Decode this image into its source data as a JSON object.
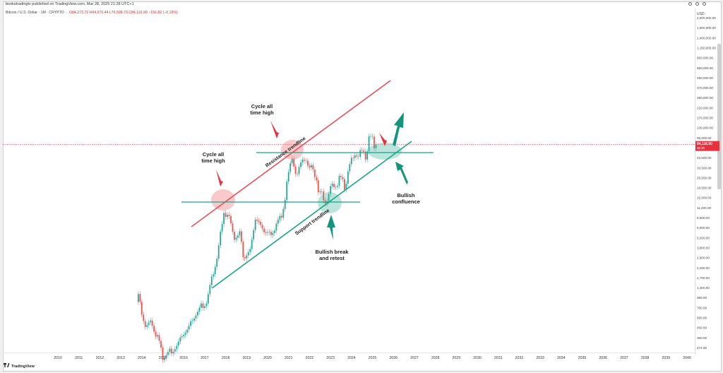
{
  "header": {
    "published": "bookstradingtv published on TradingView.com, Mar 28, 2025 21:28 UTC+1",
    "symbol": "Bitcoin / U.S. Dollar · 1M · CRYPTO",
    "open": "O84,273.72",
    "high": "H94,970.44",
    "low": "L76,598.73",
    "close": "C84,116.90",
    "change": "−156.82 (−0.19%)"
  },
  "axis": {
    "currency": "USD",
    "price_label": "84,116.90",
    "price_label_sub": "3d 4h",
    "brand": "TradingView"
  },
  "colors": {
    "resistance": "#e8505b",
    "support": "#1aa58a",
    "bull_candle": "#26a69a",
    "bear_candle": "#ef5350",
    "arrow_red": "#e8313f",
    "arrow_green": "#12957c",
    "price_label_bg": "#e8313f"
  },
  "annotations": {
    "cycle_high_1": [
      "Cycle all",
      "time high"
    ],
    "cycle_high_2": [
      "Cycle all",
      "time high"
    ],
    "resistance": "Resistance trendline",
    "support": "Support trendline",
    "bullish_break": [
      "Bullish break",
      "and retest"
    ],
    "bullish_confluence": [
      "Bullish",
      "confluence"
    ]
  },
  "chart_data": {
    "type": "candlestick",
    "title": "",
    "scale": "log",
    "x_ticks": [
      "2010",
      "2011",
      "2012",
      "2013",
      "2014",
      "2015",
      "2016",
      "2017",
      "2018",
      "2019",
      "2020",
      "2021",
      "2022",
      "2023",
      "2024",
      "2025",
      "2026",
      "2027",
      "2028",
      "2029",
      "2030",
      "2031",
      "2032",
      "2033",
      "2034",
      "2035",
      "2036",
      "2037",
      "2038",
      "2039",
      "2040"
    ],
    "y_ticks": [
      "2,500,000.00",
      "1,900,000.00",
      "1,400,000.00",
      "1,150,000.00",
      "850,000.00",
      "650,000.00",
      "490,000.00",
      "370,000.00",
      "280,000.00",
      "220,000.00",
      "170,000.00",
      "130,000.00",
      "98,000.00",
      "57,500.00",
      "43,500.00",
      "33,500.00",
      "25,500.00",
      "19,500.00",
      "15,000.00",
      "11,400.00",
      "8,600.00",
      "6,600.00",
      "5,000.00",
      "3,800.00",
      "2,900.00",
      "2,200.00",
      "1,700.00",
      "1,300.00",
      "980.00",
      "760.00",
      "580.00",
      "450.00",
      "350.00",
      "274.00"
    ],
    "monthly_close": [
      {
        "date": "2013-11",
        "value": 1130
      },
      {
        "date": "2014-01",
        "value": 800
      },
      {
        "date": "2014-04",
        "value": 450
      },
      {
        "date": "2014-07",
        "value": 580
      },
      {
        "date": "2014-10",
        "value": 340
      },
      {
        "date": "2015-01",
        "value": 220
      },
      {
        "date": "2015-06",
        "value": 260
      },
      {
        "date": "2015-11",
        "value": 370
      },
      {
        "date": "2016-06",
        "value": 670
      },
      {
        "date": "2016-12",
        "value": 960
      },
      {
        "date": "2017-03",
        "value": 1080
      },
      {
        "date": "2017-06",
        "value": 2480
      },
      {
        "date": "2017-09",
        "value": 4300
      },
      {
        "date": "2017-11",
        "value": 10000
      },
      {
        "date": "2017-12",
        "value": 13800
      },
      {
        "date": "2018-02",
        "value": 10300
      },
      {
        "date": "2018-04",
        "value": 9200
      },
      {
        "date": "2018-06",
        "value": 6400
      },
      {
        "date": "2018-09",
        "value": 6600
      },
      {
        "date": "2018-11",
        "value": 4000
      },
      {
        "date": "2018-12",
        "value": 3700
      },
      {
        "date": "2019-03",
        "value": 4100
      },
      {
        "date": "2019-06",
        "value": 10800
      },
      {
        "date": "2019-09",
        "value": 8300
      },
      {
        "date": "2019-12",
        "value": 7200
      },
      {
        "date": "2020-03",
        "value": 6400
      },
      {
        "date": "2020-06",
        "value": 9100
      },
      {
        "date": "2020-09",
        "value": 10800
      },
      {
        "date": "2020-11",
        "value": 19700
      },
      {
        "date": "2020-12",
        "value": 29000
      },
      {
        "date": "2021-02",
        "value": 45000
      },
      {
        "date": "2021-03",
        "value": 58800
      },
      {
        "date": "2021-06",
        "value": 35000
      },
      {
        "date": "2021-08",
        "value": 47000
      },
      {
        "date": "2021-10",
        "value": 61300
      },
      {
        "date": "2021-11",
        "value": 57000
      },
      {
        "date": "2022-01",
        "value": 38500
      },
      {
        "date": "2022-03",
        "value": 45500
      },
      {
        "date": "2022-05",
        "value": 31800
      },
      {
        "date": "2022-06",
        "value": 19900
      },
      {
        "date": "2022-09",
        "value": 19400
      },
      {
        "date": "2022-11",
        "value": 17200
      },
      {
        "date": "2023-01",
        "value": 23100
      },
      {
        "date": "2023-03",
        "value": 28500
      },
      {
        "date": "2023-06",
        "value": 30500
      },
      {
        "date": "2023-09",
        "value": 27000
      },
      {
        "date": "2023-11",
        "value": 37700
      },
      {
        "date": "2023-12",
        "value": 42300
      },
      {
        "date": "2024-02",
        "value": 61200
      },
      {
        "date": "2024-03",
        "value": 71300
      },
      {
        "date": "2024-06",
        "value": 62700
      },
      {
        "date": "2024-09",
        "value": 63300
      },
      {
        "date": "2024-11",
        "value": 96400
      },
      {
        "date": "2024-12",
        "value": 93400
      },
      {
        "date": "2025-01",
        "value": 102400
      },
      {
        "date": "2025-02",
        "value": 84300
      },
      {
        "date": "2025-03",
        "value": 84117
      }
    ],
    "horizontal_levels": [
      13800,
      64000
    ],
    "last_price": 84116.9
  }
}
